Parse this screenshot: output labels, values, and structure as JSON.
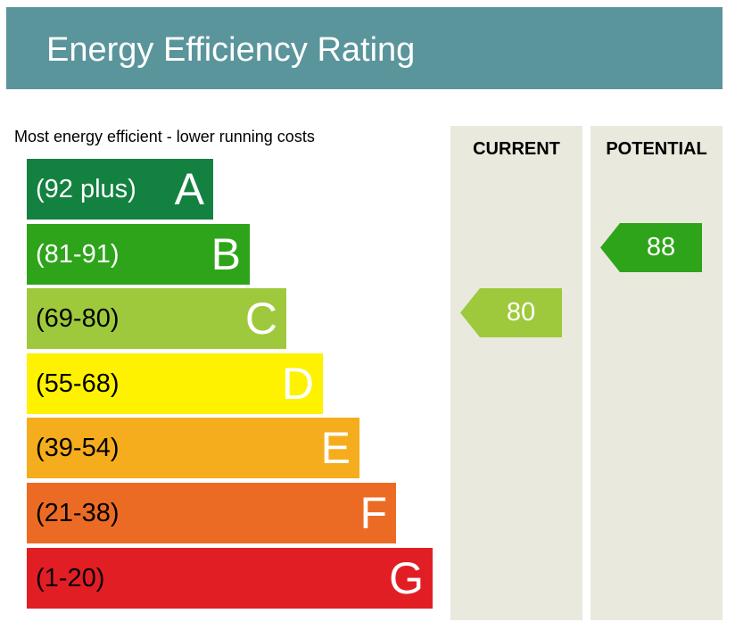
{
  "header": {
    "title": "Energy Efficiency Rating"
  },
  "subtitle": "Most energy efficient - lower running costs",
  "columns": {
    "current": "CURRENT",
    "potential": "POTENTIAL"
  },
  "chart_data": {
    "type": "bar",
    "title": "Energy Efficiency Rating",
    "bands": [
      {
        "range": "(92 plus)",
        "letter": "A",
        "min": 92,
        "max": null,
        "color": "#138140",
        "text_color": "#ffffff"
      },
      {
        "range": "(81-91)",
        "letter": "B",
        "min": 81,
        "max": 91,
        "color": "#2ea41b",
        "text_color": "#ffffff"
      },
      {
        "range": "(69-80)",
        "letter": "C",
        "min": 69,
        "max": 80,
        "color": "#9fc93c",
        "text_color": "#000000"
      },
      {
        "range": "(55-68)",
        "letter": "D",
        "min": 55,
        "max": 68,
        "color": "#fff200",
        "text_color": "#000000"
      },
      {
        "range": "(39-54)",
        "letter": "E",
        "min": 39,
        "max": 54,
        "color": "#f5ad1e",
        "text_color": "#000000"
      },
      {
        "range": "(21-38)",
        "letter": "F",
        "min": 21,
        "max": 38,
        "color": "#ec6b24",
        "text_color": "#000000"
      },
      {
        "range": "(1-20)",
        "letter": "G",
        "min": 1,
        "max": 20,
        "color": "#e21e25",
        "text_color": "#000000"
      }
    ],
    "current": {
      "value": 80,
      "band": "C",
      "color": "#9fc93c"
    },
    "potential": {
      "value": 88,
      "band": "B",
      "color": "#2ea41b"
    }
  }
}
